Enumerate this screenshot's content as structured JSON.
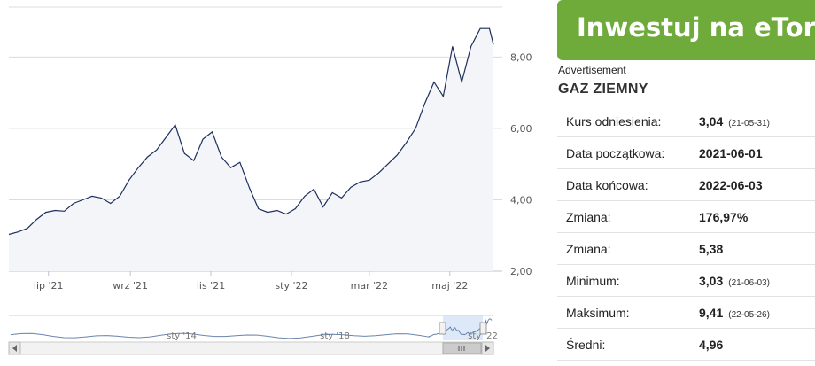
{
  "promo": {
    "label": "Inwestuj na eToro"
  },
  "ad_label": "Advertisement",
  "instrument": "GAZ ZIEMNY",
  "stats": [
    {
      "label": "Kurs odniesienia:",
      "value": "3,04",
      "date": "(21-05-31)"
    },
    {
      "label": "Data początkowa:",
      "value": "2021-06-01",
      "date": ""
    },
    {
      "label": "Data końcowa:",
      "value": "2022-06-03",
      "date": ""
    },
    {
      "label": "Zmiana:",
      "value": "176,97%",
      "date": ""
    },
    {
      "label": "Zmiana:",
      "value": "5,38",
      "date": ""
    },
    {
      "label": "Minimum:",
      "value": "3,03",
      "date": "(21-06-03)"
    },
    {
      "label": "Maksimum:",
      "value": "9,41",
      "date": "(22-05-26)"
    },
    {
      "label": "Średni:",
      "value": "4,96",
      "date": ""
    }
  ],
  "colors": {
    "line": "#1d2f5b",
    "area": "#f3f5f8",
    "promo": "#6fab3a",
    "grid": "#dcdcdc"
  },
  "chart_data": {
    "type": "area",
    "xlabel": "",
    "ylabel": "",
    "ylim": [
      2,
      9.4
    ],
    "yticks": [
      "2,00",
      "4,00",
      "6,00",
      "8,00"
    ],
    "ytick_values": [
      2,
      4,
      6,
      8
    ],
    "xticks": [
      "lip '21",
      "wrz '21",
      "lis '21",
      "sty '22",
      "mar '22",
      "maj '22"
    ],
    "xtick_dates": [
      "2021-07-01",
      "2021-09-01",
      "2021-11-01",
      "2022-01-01",
      "2022-03-01",
      "2022-05-01"
    ],
    "x_range": [
      "2021-06-01",
      "2022-06-03"
    ],
    "grid": true,
    "series": [
      {
        "x": [
          "2021-06-01",
          "2021-06-08",
          "2021-06-15",
          "2021-06-22",
          "2021-06-29",
          "2021-07-06",
          "2021-07-13",
          "2021-07-20",
          "2021-07-27",
          "2021-08-03",
          "2021-08-10",
          "2021-08-17",
          "2021-08-24",
          "2021-08-31",
          "2021-09-07",
          "2021-09-14",
          "2021-09-21",
          "2021-09-28",
          "2021-10-05",
          "2021-10-12",
          "2021-10-19",
          "2021-10-26",
          "2021-11-02",
          "2021-11-09",
          "2021-11-16",
          "2021-11-23",
          "2021-11-30",
          "2021-12-07",
          "2021-12-14",
          "2021-12-21",
          "2021-12-28",
          "2022-01-04",
          "2022-01-11",
          "2022-01-18",
          "2022-01-25",
          "2022-02-01",
          "2022-02-08",
          "2022-02-15",
          "2022-02-22",
          "2022-03-01",
          "2022-03-08",
          "2022-03-15",
          "2022-03-22",
          "2022-03-29",
          "2022-04-05",
          "2022-04-12",
          "2022-04-19",
          "2022-04-26",
          "2022-05-03",
          "2022-05-10",
          "2022-05-17",
          "2022-05-24",
          "2022-05-31",
          "2022-06-03"
        ],
        "y": [
          3.03,
          3.1,
          3.2,
          3.45,
          3.65,
          3.7,
          3.68,
          3.9,
          4.0,
          4.1,
          4.05,
          3.9,
          4.1,
          4.55,
          4.9,
          5.2,
          5.4,
          5.75,
          6.1,
          5.3,
          5.1,
          5.7,
          5.9,
          5.2,
          4.9,
          5.05,
          4.35,
          3.75,
          3.65,
          3.7,
          3.6,
          3.75,
          4.1,
          4.3,
          3.8,
          4.2,
          4.05,
          4.35,
          4.5,
          4.55,
          4.75,
          5.0,
          5.25,
          5.6,
          6.0,
          6.7,
          7.3,
          6.9,
          8.3,
          7.3,
          8.3,
          8.8,
          8.8,
          8.35
        ]
      }
    ],
    "navigator": {
      "xticks": [
        "sty '14",
        "sty '18",
        "sty '22"
      ]
    }
  }
}
